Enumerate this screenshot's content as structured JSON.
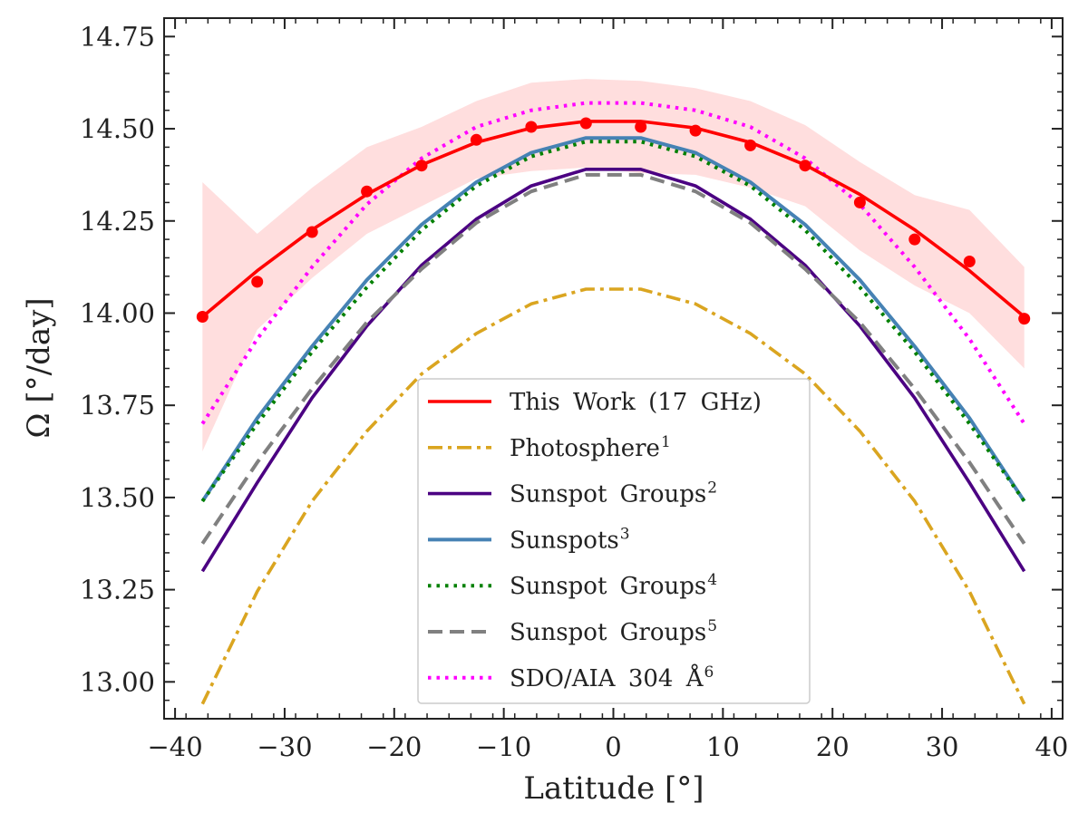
{
  "chart_data": {
    "type": "line",
    "title": "",
    "xlabel": "Latitude [°]",
    "ylabel": "Ω [°/day]",
    "xlim": [
      -41,
      41
    ],
    "ylim": [
      12.9,
      14.8
    ],
    "xticks": [
      -40,
      -30,
      -20,
      -10,
      0,
      10,
      20,
      30,
      40
    ],
    "xtick_labels": [
      "−40",
      "−30",
      "−20",
      "−10",
      "0",
      "10",
      "20",
      "30",
      "40"
    ],
    "yticks": [
      13.0,
      13.25,
      13.5,
      13.75,
      14.0,
      14.25,
      14.5,
      14.75
    ],
    "ytick_labels": [
      "13.00",
      "13.25",
      "13.50",
      "13.75",
      "14.00",
      "14.25",
      "14.50",
      "14.75"
    ],
    "legend_position": "lower-center",
    "x": [
      -37.5,
      -32.5,
      -27.5,
      -22.5,
      -17.5,
      -12.5,
      -7.5,
      -2.5,
      2.5,
      7.5,
      12.5,
      17.5,
      22.5,
      27.5,
      32.5,
      37.5
    ],
    "measurements": {
      "name": "This Work (17 GHz) data",
      "color": "#ff0000",
      "values": [
        13.99,
        14.085,
        14.22,
        14.33,
        14.4,
        14.47,
        14.505,
        14.515,
        14.505,
        14.495,
        14.455,
        14.4,
        14.3,
        14.2,
        14.14,
        13.985
      ]
    },
    "uncertainty_band": {
      "color": "#ffdede",
      "upper": [
        14.355,
        14.215,
        14.34,
        14.45,
        14.505,
        14.575,
        14.625,
        14.635,
        14.63,
        14.61,
        14.575,
        14.51,
        14.41,
        14.32,
        14.28,
        14.125
      ],
      "lower": [
        13.625,
        13.955,
        14.095,
        14.215,
        14.29,
        14.365,
        14.385,
        14.395,
        14.38,
        14.375,
        14.34,
        14.29,
        14.17,
        14.075,
        14.0,
        13.85
      ]
    },
    "series": [
      {
        "name": "This Work (17 GHz)",
        "sup": "",
        "color": "#ff0000",
        "style": "solid",
        "width": 3.6,
        "values": [
          13.99,
          14.115,
          14.226,
          14.322,
          14.402,
          14.463,
          14.502,
          14.52,
          14.52,
          14.502,
          14.463,
          14.402,
          14.322,
          14.226,
          14.115,
          13.99
        ]
      },
      {
        "name": "Photosphere",
        "sup": "1",
        "color": "#daa520",
        "style": "dashdot",
        "width": 3.6,
        "values": [
          12.94,
          13.245,
          13.49,
          13.68,
          13.835,
          13.945,
          14.025,
          14.065,
          14.065,
          14.025,
          13.945,
          13.835,
          13.68,
          13.49,
          13.245,
          12.94
        ]
      },
      {
        "name": "Sunspot Groups",
        "sup": "2",
        "color": "#4b0082",
        "style": "solid",
        "width": 3.6,
        "values": [
          13.3,
          13.54,
          13.77,
          13.965,
          14.13,
          14.255,
          14.345,
          14.39,
          14.39,
          14.345,
          14.255,
          14.13,
          13.965,
          13.77,
          13.54,
          13.3
        ]
      },
      {
        "name": "Sunspots",
        "sup": "3",
        "color": "#4682b4",
        "style": "solid",
        "width": 4,
        "values": [
          13.49,
          13.715,
          13.91,
          14.09,
          14.24,
          14.355,
          14.435,
          14.475,
          14.475,
          14.435,
          14.355,
          14.24,
          14.09,
          13.91,
          13.715,
          13.49
        ]
      },
      {
        "name": "Sunspot Groups",
        "sup": "4",
        "color": "#008000",
        "style": "dotted",
        "width": 4,
        "values": [
          13.49,
          13.7,
          13.895,
          14.07,
          14.225,
          14.345,
          14.425,
          14.465,
          14.465,
          14.425,
          14.345,
          14.225,
          14.07,
          13.895,
          13.7,
          13.49
        ]
      },
      {
        "name": "Sunspot Groups",
        "sup": "5",
        "color": "#808080",
        "style": "dashed",
        "width": 4,
        "values": [
          13.375,
          13.595,
          13.795,
          13.975,
          14.12,
          14.245,
          14.33,
          14.375,
          14.375,
          14.33,
          14.245,
          14.12,
          13.975,
          13.795,
          13.595,
          13.375
        ]
      },
      {
        "name": "SDO/AIA 304 Å",
        "sup": "6",
        "color": "#ff00ff",
        "style": "dotted",
        "width": 4,
        "values": [
          13.7,
          13.93,
          14.125,
          14.295,
          14.42,
          14.505,
          14.55,
          14.57,
          14.57,
          14.55,
          14.505,
          14.42,
          14.295,
          14.125,
          13.93,
          13.7
        ]
      }
    ]
  }
}
